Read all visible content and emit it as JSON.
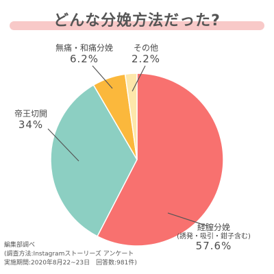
{
  "title": "どんな分娩方法だった?",
  "chart_data": {
    "type": "pie",
    "title": "どんな分娩方法だった?",
    "slices": [
      {
        "label": "経膣分娩",
        "sublabel": "(誘発・吸引・鉗子含む)",
        "value": 57.6,
        "value_text": "57.6%",
        "color": "#f8716f"
      },
      {
        "label": "帝王切開",
        "sublabel": "",
        "value": 34.0,
        "value_text": "34%",
        "color": "#8ccfc2"
      },
      {
        "label": "無痛・和痛分娩",
        "sublabel": "",
        "value": 6.2,
        "value_text": "6.2%",
        "color": "#fbb83c"
      },
      {
        "label": "その他",
        "sublabel": "",
        "value": 2.2,
        "value_text": "2.2%",
        "color": "#fde7aa"
      }
    ]
  },
  "footnote": {
    "line1": "編集部調べ",
    "line2": "(調査方法:Instagramストーリーズ アンケート",
    "line3": "実施期間:2020年8月22~23日　回答数:981件)"
  }
}
